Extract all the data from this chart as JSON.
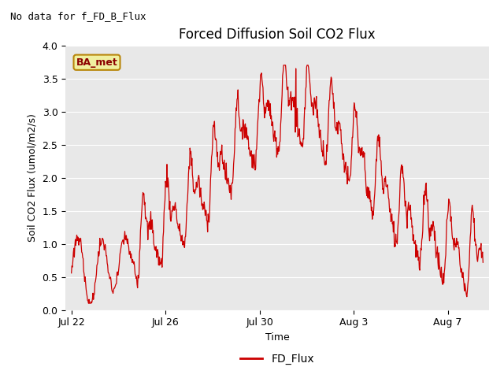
{
  "title": "Forced Diffusion Soil CO2 Flux",
  "no_data_text": "No data for f_FD_B_Flux",
  "ba_met_label": "BA_met",
  "ylabel": "Soil CO2 Flux (umol/m2/s)",
  "xlabel": "Time",
  "ylim": [
    0.0,
    4.0
  ],
  "yticks": [
    0.0,
    0.5,
    1.0,
    1.5,
    2.0,
    2.5,
    3.0,
    3.5,
    4.0
  ],
  "line_color": "#cc0000",
  "legend_label": "FD_Flux",
  "bg_color": "#e8e8e8",
  "fig_color": "#ffffff",
  "title_fontsize": 12,
  "label_fontsize": 9,
  "tick_fontsize": 9,
  "annotation_fontsize": 9
}
